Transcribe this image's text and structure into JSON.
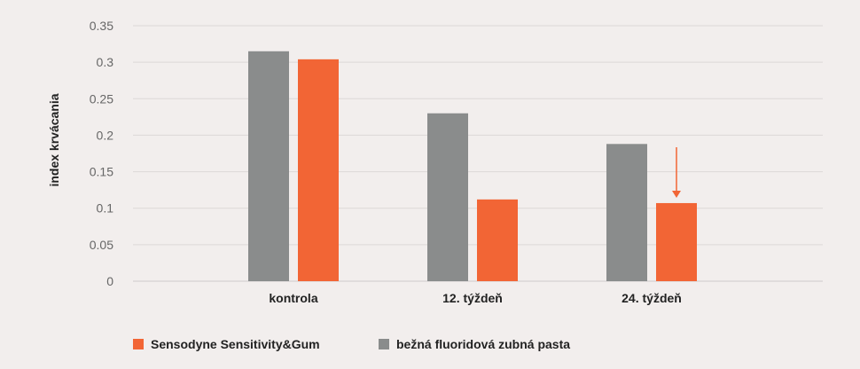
{
  "chart_data": {
    "type": "bar",
    "ylabel": "index krvácania",
    "xlabel": "",
    "ylim": [
      0,
      0.35
    ],
    "yticks": [
      "0",
      "0.05",
      "0.1",
      "0.15",
      "0.2",
      "0.25",
      "0.3",
      "0.35"
    ],
    "categories": [
      "kontrola",
      "12. týždeň",
      "24. týždeň"
    ],
    "series": [
      {
        "name": "bežná fluoridová zubná pasta",
        "color": "#8a8c8c",
        "values": [
          0.315,
          0.23,
          0.188
        ]
      },
      {
        "name": "Sensodyne Sensitivity&Gum",
        "color": "#f26535",
        "values": [
          0.304,
          0.112,
          0.107
        ]
      }
    ],
    "legend": {
      "placement": "bottom",
      "order": [
        "Sensodyne Sensitivity&Gum",
        "bežná fluoridová zubná pasta"
      ]
    },
    "grid": true,
    "annotation": {
      "type": "down-arrow",
      "category": "24. týždeň",
      "series": "Sensodyne Sensitivity&Gum",
      "color": "#f26535"
    }
  }
}
